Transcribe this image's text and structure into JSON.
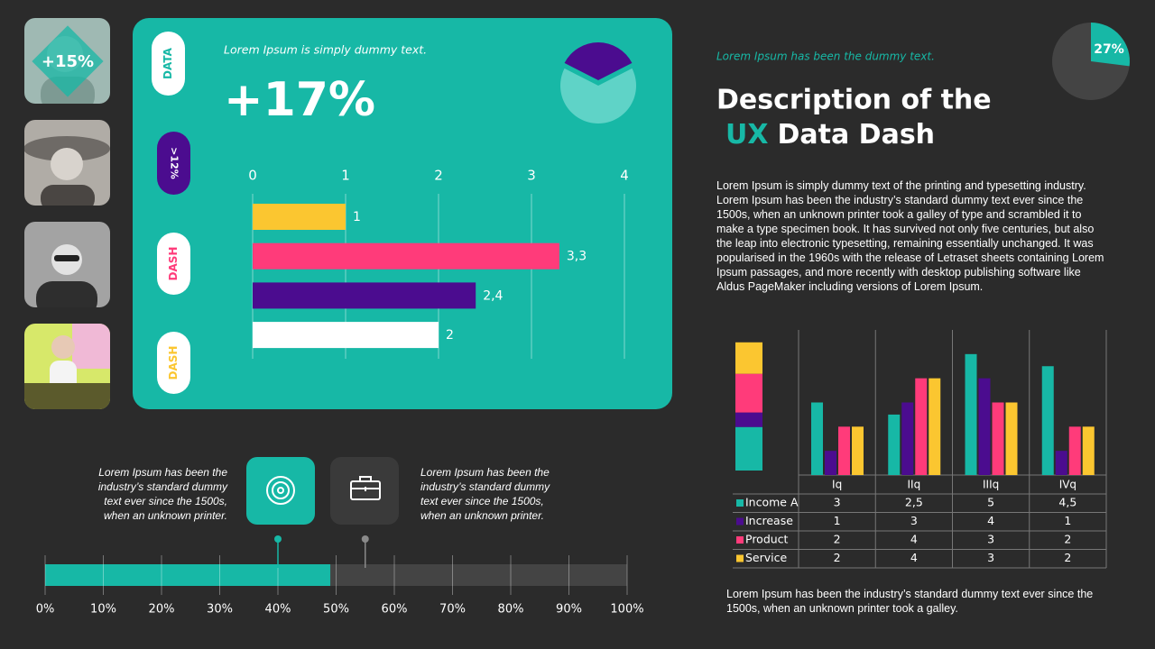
{
  "photo_badge": "+15%",
  "panel": {
    "tabs": [
      "DATA",
      ">12%",
      "DASH",
      "DASH"
    ],
    "subtitle": "Lorem Ipsum is simply dummy text.",
    "headline": "+17%"
  },
  "header": {
    "tagline": "Lorem Ipsum has been the dummy text.",
    "title_line1": "Description of the",
    "title_highlight": "UX",
    "title_line2": "Data Dash"
  },
  "body_text": "Lorem Ipsum is simply dummy text of the printing and typesetting industry. Lorem Ipsum has been the industry’s standard dummy text ever since the 1500s, when an unknown printer took a galley of type and scrambled it to make a type specimen book. It has survived not only five centuries, but also the leap into electronic typesetting, remaining essentially unchanged. It was popularised in the 1960s with the release of Letraset sheets containing Lorem Ipsum passages, and more recently with desktop publishing software like Aldus PageMaker including versions of Lorem Ipsum.",
  "footnote": "Lorem Ipsum has been the industry’s standard dummy text ever since the 1500s, when an unknown printer took a galley.",
  "notes": [
    "Lorem Ipsum has been the industry’s standard dummy text ever since the 1500s, when an unknown printer.",
    "Lorem Ipsum has been the industry’s standard dummy text ever since the 1500s, when an unknown printer."
  ],
  "chart_data": [
    {
      "type": "pie",
      "values": [
        35,
        65
      ],
      "colors": [
        "#4b0c8f",
        "#5fd3c7"
      ]
    },
    {
      "type": "bar",
      "orientation": "horizontal",
      "values": [
        1,
        3.3,
        2.4,
        2
      ],
      "value_labels": [
        "1",
        "3,3",
        "2,4",
        "2"
      ],
      "colors": [
        "#fbc630",
        "#ff3b7a",
        "#4b0c8f",
        "#ffffff"
      ],
      "xlim": [
        0,
        4
      ],
      "xticks": [
        0,
        1,
        2,
        3,
        4
      ],
      "grid": true
    },
    {
      "type": "donut",
      "values": [
        27
      ],
      "value_labels": [
        "27%"
      ],
      "color": "#17b8a6",
      "track_color": "#444444"
    },
    {
      "type": "grouped-bar",
      "categories": [
        "Iq",
        "IIq",
        "IIIq",
        "IVq"
      ],
      "series": [
        {
          "name": "Income A",
          "color": "#17b8a6",
          "values": [
            3,
            2.5,
            5,
            4.5
          ],
          "value_labels": [
            "3",
            "2,5",
            "5",
            "4,5"
          ]
        },
        {
          "name": "Increase",
          "color": "#4b0c8f",
          "values": [
            1,
            3,
            4,
            1
          ]
        },
        {
          "name": "Product",
          "color": "#ff3b7a",
          "values": [
            2,
            4,
            3,
            2
          ]
        },
        {
          "name": "Service",
          "color": "#fbc630",
          "values": [
            2,
            4,
            3,
            2
          ]
        }
      ],
      "ylim": [
        0,
        6
      ]
    },
    {
      "type": "stacked-bar",
      "values": [
        1.8,
        0.6,
        1.6,
        1.3
      ],
      "colors": [
        "#17b8a6",
        "#4b0c8f",
        "#ff3b7a",
        "#fbc630"
      ],
      "ylim": [
        0,
        6
      ]
    },
    {
      "type": "progress",
      "values": [
        49
      ],
      "color": "#17b8a6",
      "markers": [
        40,
        55
      ],
      "marker_colors": [
        "#17b8a6",
        "#8a8a8a"
      ],
      "xlim": [
        0,
        100
      ],
      "xticks": [
        {
          "value": 0,
          "label": "0%"
        },
        {
          "value": 10,
          "label": "10%"
        },
        {
          "value": 20,
          "label": "20%"
        },
        {
          "value": 30,
          "label": "30%"
        },
        {
          "value": 40,
          "label": "40%"
        },
        {
          "value": 50,
          "label": "50%"
        },
        {
          "value": 60,
          "label": "60%"
        },
        {
          "value": 70,
          "label": "70%"
        },
        {
          "value": 80,
          "label": "80%"
        },
        {
          "value": 90,
          "label": "90%"
        },
        {
          "value": 100,
          "label": "100%"
        }
      ],
      "grid": true
    }
  ]
}
